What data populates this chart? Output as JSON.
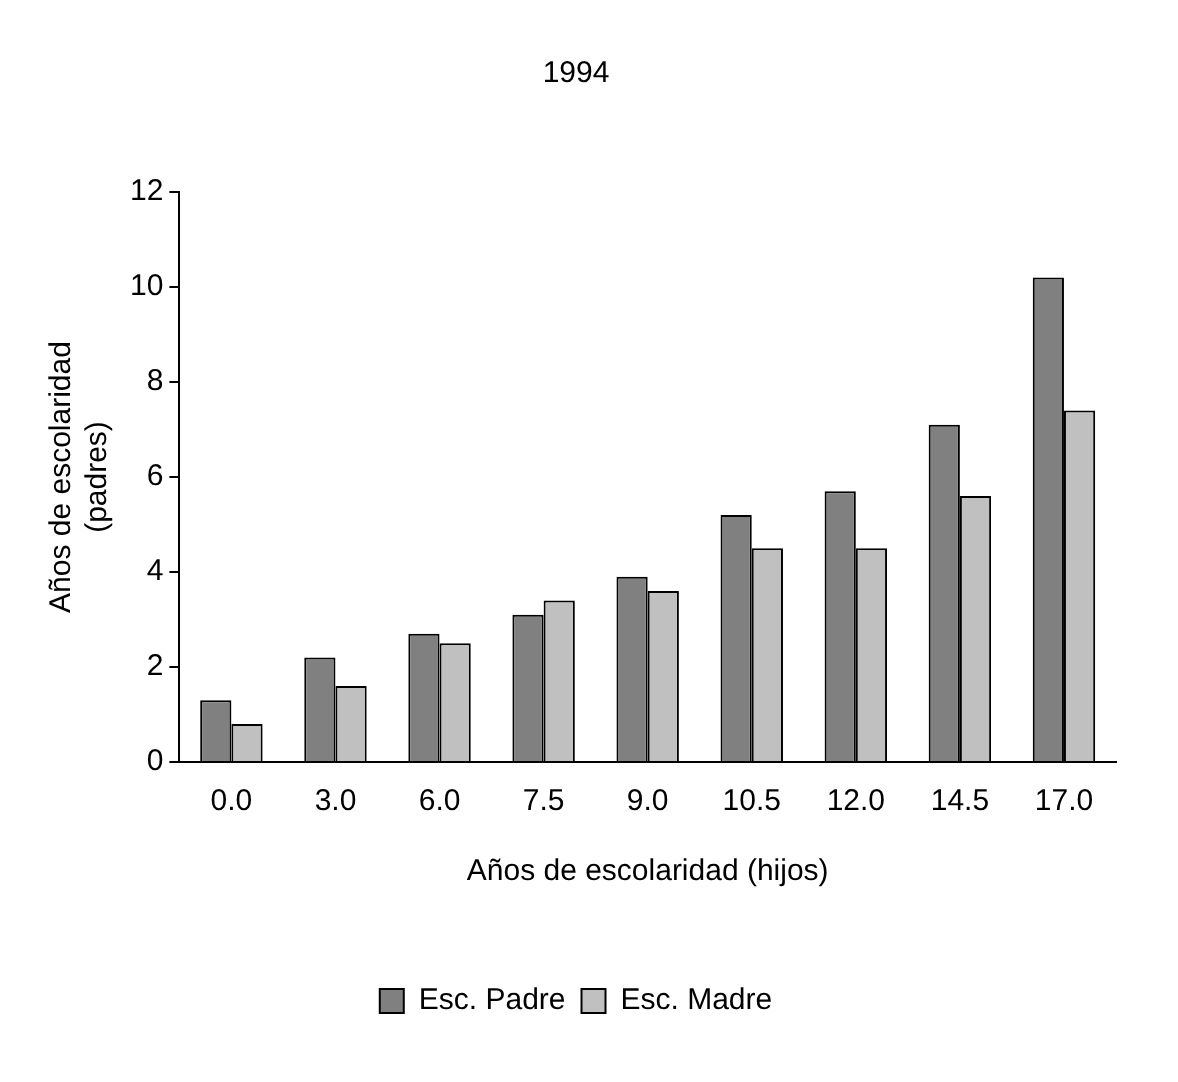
{
  "chart_data": {
    "type": "bar",
    "title": "1994",
    "xlabel": "Años de escolaridad (hijos)",
    "ylabel": "Años de escolaridad (padres)",
    "categories": [
      "0.0",
      "3.0",
      "6.0",
      "7.5",
      "9.0",
      "10.5",
      "12.0",
      "14.5",
      "17.0"
    ],
    "series": [
      {
        "name": "Esc. Padre",
        "color": "#808080",
        "values": [
          1.3,
          2.2,
          2.7,
          3.1,
          3.9,
          5.2,
          5.7,
          7.1,
          10.2
        ]
      },
      {
        "name": "Esc. Madre",
        "color": "#c0c0c0",
        "values": [
          0.8,
          1.6,
          2.5,
          3.4,
          3.6,
          4.5,
          4.5,
          5.6,
          7.4
        ]
      }
    ],
    "ylim": [
      0,
      12
    ],
    "yticks": [
      0,
      2,
      4,
      6,
      8,
      10,
      12
    ],
    "grid": false,
    "legend": "bottom"
  }
}
